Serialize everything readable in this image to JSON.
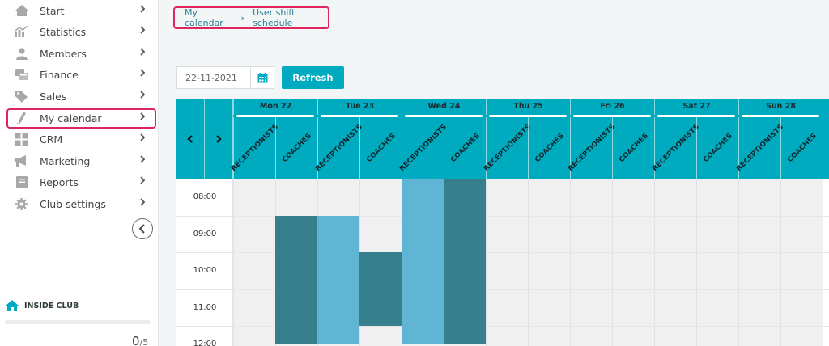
{
  "sidebar": {
    "items": [
      {
        "label": "Start",
        "icon": "home-icon"
      },
      {
        "label": "Statistics",
        "icon": "chart-icon"
      },
      {
        "label": "Members",
        "icon": "user-icon"
      },
      {
        "label": "Finance",
        "icon": "finance-icon"
      },
      {
        "label": "Sales",
        "icon": "tag-icon"
      },
      {
        "label": "My calendar",
        "icon": "calendar-icon"
      },
      {
        "label": "CRM",
        "icon": "grid-icon"
      },
      {
        "label": "Marketing",
        "icon": "megaphone-icon"
      },
      {
        "label": "Reports",
        "icon": "report-icon"
      },
      {
        "label": "Club settings",
        "icon": "gear-icon"
      }
    ],
    "active": "My calendar",
    "inside_club": {
      "label": "INSIDE CLUB",
      "count": "0",
      "sep": "/",
      "max": "5"
    }
  },
  "breadcrumb": {
    "items": [
      "My calendar",
      "User shift schedule"
    ]
  },
  "toolbar": {
    "date_value": "22-11-2021",
    "refresh_label": "Refresh"
  },
  "schedule": {
    "days": [
      "Mon 22",
      "Tue 23",
      "Wed 24",
      "Thu 25",
      "Fri 26",
      "Sat 27",
      "Sun 28"
    ],
    "roles": [
      "RECEPTIONISTS",
      "COACHES"
    ],
    "times": [
      "08:00",
      "09:00",
      "10:00",
      "11:00",
      "12:00"
    ],
    "shifts": [
      {
        "day": 0,
        "role": 1,
        "start": 1.0,
        "end": 4.5,
        "type": "coach"
      },
      {
        "day": 1,
        "role": 0,
        "start": 1.0,
        "end": 4.5,
        "type": "receptionist"
      },
      {
        "day": 1,
        "role": 1,
        "start": 2.0,
        "end": 4.0,
        "type": "coach"
      },
      {
        "day": 2,
        "role": 0,
        "start": 0.0,
        "end": 4.5,
        "type": "receptionist"
      },
      {
        "day": 2,
        "role": 1,
        "start": 0.0,
        "end": 4.5,
        "type": "coach"
      }
    ],
    "colors": {
      "header": "#00aabf",
      "coach": "#367f8c",
      "receptionist": "#5fb5d3"
    }
  }
}
